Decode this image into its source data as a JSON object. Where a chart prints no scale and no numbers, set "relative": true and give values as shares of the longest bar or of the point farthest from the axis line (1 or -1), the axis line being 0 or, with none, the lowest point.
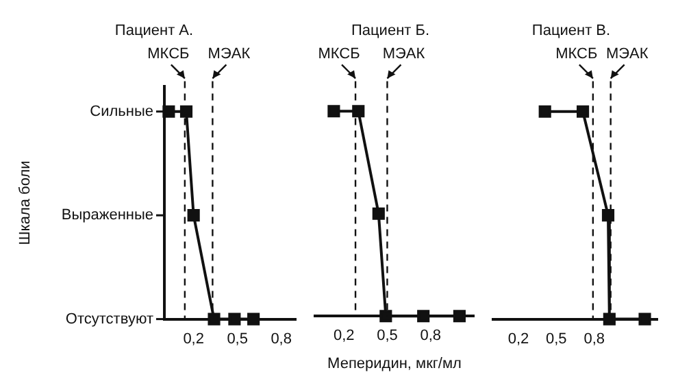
{
  "chart_data": [
    {
      "type": "line",
      "title": "Пациент А.",
      "ylabel": "Шкала боли",
      "relative": true,
      "annotations": [
        "Сильные",
        "Выраженные",
        "Отсутствуют"
      ],
      "xlim": [
        0,
        0.9
      ],
      "xticks": [
        {
          "value": 0.2,
          "label": "0,2"
        },
        {
          "value": 0.5,
          "label": "0,5"
        },
        {
          "value": 0.8,
          "label": "0,8"
        }
      ],
      "grid": false,
      "legend": false,
      "marker": "square",
      "line_style": "solid",
      "series": [
        {
          "color": "#111111",
          "x": [
            0.03,
            0.15,
            0.2,
            0.34,
            0.48,
            0.61
          ],
          "values": [
            1,
            1,
            0.5,
            0,
            0,
            0
          ]
        }
      ],
      "ref_lines": [
        {
          "axis": "x",
          "value": 0.14,
          "label": "МКСБ",
          "line_style": "dashed"
        },
        {
          "axis": "x",
          "value": 0.33,
          "label": "МЭАК",
          "line_style": "dashed"
        }
      ]
    },
    {
      "type": "line",
      "title": "Пациент Б.",
      "xlabel": "Меперидин, мкг/мл",
      "relative": true,
      "xlim": [
        0,
        1.1
      ],
      "xticks": [
        {
          "value": 0.2,
          "label": "0,2"
        },
        {
          "value": 0.5,
          "label": "0,5"
        },
        {
          "value": 0.8,
          "label": "0,8"
        }
      ],
      "tick_labels": "x",
      "grid": false,
      "legend": false,
      "marker": "square",
      "line_style": "solid",
      "series": [
        {
          "color": "#111111",
          "x": [
            0.13,
            0.3,
            0.44,
            0.49,
            0.75,
            1.0
          ],
          "values": [
            1,
            1,
            0.5,
            0,
            0,
            0
          ]
        }
      ],
      "ref_lines": [
        {
          "axis": "x",
          "value": 0.28,
          "label": "МКСБ",
          "line_style": "dashed"
        },
        {
          "axis": "x",
          "value": 0.5,
          "label": "МЭАК",
          "line_style": "dashed"
        }
      ]
    },
    {
      "type": "line",
      "title": "Пациент В.",
      "relative": true,
      "xlim": [
        0,
        1.3
      ],
      "xticks": [
        {
          "value": 0.2,
          "label": "0,2"
        },
        {
          "value": 0.5,
          "label": "0,5"
        },
        {
          "value": 0.8,
          "label": "0,8"
        }
      ],
      "tick_labels": "x",
      "grid": false,
      "legend": false,
      "marker": "square",
      "line_style": "solid",
      "series": [
        {
          "color": "#111111",
          "x": [
            0.41,
            0.71,
            0.91,
            0.92,
            1.2
          ],
          "values": [
            1,
            1,
            0.5,
            0,
            0
          ]
        }
      ],
      "ref_lines": [
        {
          "axis": "x",
          "value": 0.79,
          "label": "МКСБ",
          "line_style": "dashed"
        },
        {
          "axis": "x",
          "value": 0.93,
          "label": "МЭАК",
          "line_style": "dashed"
        }
      ]
    }
  ]
}
